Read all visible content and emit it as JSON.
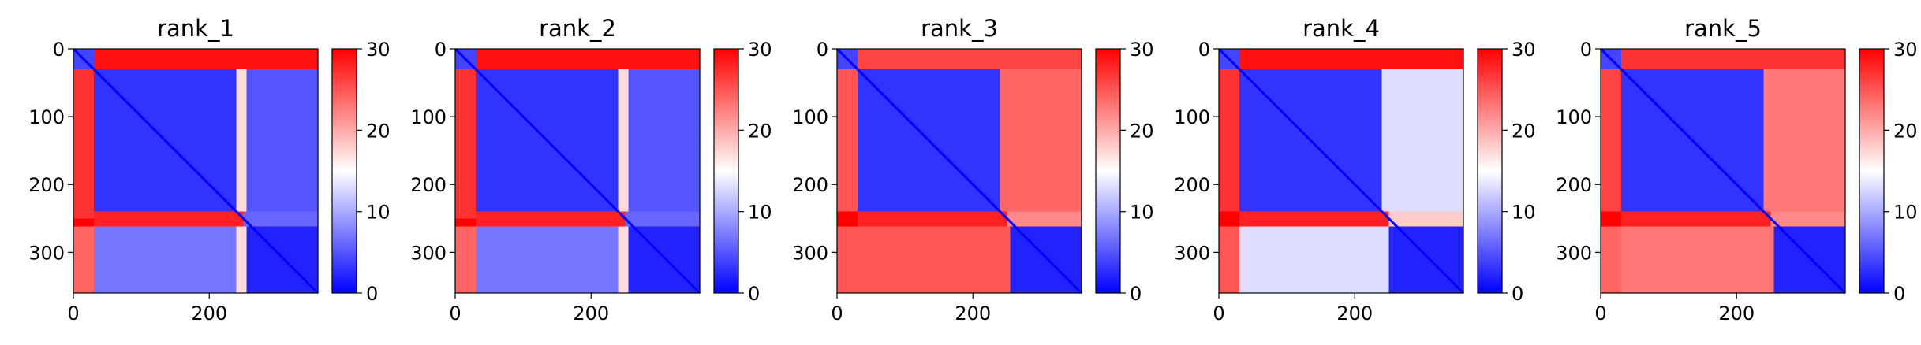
{
  "figure": {
    "colorbar": {
      "ticks": [
        "0",
        "10",
        "20",
        "30"
      ],
      "min": 0,
      "max": 30,
      "colors": {
        "low": "#0000ff",
        "mid": "#ffffff",
        "high": "#ff0000"
      }
    }
  },
  "chart_data": [
    {
      "type": "heatmap",
      "title": "rank_1",
      "xticks": [
        "0",
        "200"
      ],
      "yticks": [
        "0",
        "100",
        "200",
        "300"
      ],
      "xlim": [
        0,
        360
      ],
      "ylim": [
        0,
        360
      ],
      "color_range": [
        0,
        30
      ],
      "blocks": [
        {
          "rows": [
            0,
            30
          ],
          "cols": [
            0,
            30
          ],
          "value": 4
        },
        {
          "rows": [
            0,
            30
          ],
          "cols": [
            30,
            360
          ],
          "value": 29
        },
        {
          "rows": [
            30,
            250
          ],
          "cols": [
            0,
            30
          ],
          "value": 27
        },
        {
          "rows": [
            250,
            262
          ],
          "cols": [
            0,
            30
          ],
          "value": 30
        },
        {
          "rows": [
            262,
            360
          ],
          "cols": [
            0,
            30
          ],
          "value": 24
        },
        {
          "rows": [
            30,
            240
          ],
          "cols": [
            30,
            240
          ],
          "value": 3
        },
        {
          "rows": [
            30,
            240
          ],
          "cols": [
            240,
            255
          ],
          "value": 17
        },
        {
          "rows": [
            30,
            240
          ],
          "cols": [
            255,
            360
          ],
          "value": 5
        },
        {
          "rows": [
            240,
            262
          ],
          "cols": [
            30,
            250
          ],
          "value": 28
        },
        {
          "rows": [
            240,
            262
          ],
          "cols": [
            250,
            360
          ],
          "value": 6
        },
        {
          "rows": [
            262,
            360
          ],
          "cols": [
            30,
            240
          ],
          "value": 7
        },
        {
          "rows": [
            262,
            360
          ],
          "cols": [
            240,
            255
          ],
          "value": 17
        },
        {
          "rows": [
            262,
            360
          ],
          "cols": [
            255,
            360
          ],
          "value": 2
        }
      ]
    },
    {
      "type": "heatmap",
      "title": "rank_2",
      "xticks": [
        "0",
        "200"
      ],
      "yticks": [
        "0",
        "100",
        "200",
        "300"
      ],
      "xlim": [
        0,
        360
      ],
      "ylim": [
        0,
        360
      ],
      "color_range": [
        0,
        30
      ],
      "blocks": [
        {
          "rows": [
            0,
            30
          ],
          "cols": [
            0,
            30
          ],
          "value": 4
        },
        {
          "rows": [
            0,
            30
          ],
          "cols": [
            30,
            360
          ],
          "value": 29
        },
        {
          "rows": [
            30,
            250
          ],
          "cols": [
            0,
            30
          ],
          "value": 27
        },
        {
          "rows": [
            250,
            262
          ],
          "cols": [
            0,
            30
          ],
          "value": 30
        },
        {
          "rows": [
            262,
            360
          ],
          "cols": [
            0,
            30
          ],
          "value": 24
        },
        {
          "rows": [
            30,
            240
          ],
          "cols": [
            30,
            240
          ],
          "value": 3
        },
        {
          "rows": [
            30,
            240
          ],
          "cols": [
            240,
            255
          ],
          "value": 17
        },
        {
          "rows": [
            30,
            240
          ],
          "cols": [
            255,
            360
          ],
          "value": 5
        },
        {
          "rows": [
            240,
            262
          ],
          "cols": [
            30,
            250
          ],
          "value": 28
        },
        {
          "rows": [
            240,
            262
          ],
          "cols": [
            250,
            360
          ],
          "value": 6
        },
        {
          "rows": [
            262,
            360
          ],
          "cols": [
            30,
            240
          ],
          "value": 7
        },
        {
          "rows": [
            262,
            360
          ],
          "cols": [
            240,
            255
          ],
          "value": 17
        },
        {
          "rows": [
            262,
            360
          ],
          "cols": [
            255,
            360
          ],
          "value": 2
        }
      ]
    },
    {
      "type": "heatmap",
      "title": "rank_3",
      "xticks": [
        "0",
        "200"
      ],
      "yticks": [
        "0",
        "100",
        "200",
        "300"
      ],
      "xlim": [
        0,
        360
      ],
      "ylim": [
        0,
        360
      ],
      "color_range": [
        0,
        30
      ],
      "blocks": [
        {
          "rows": [
            0,
            30
          ],
          "cols": [
            0,
            30
          ],
          "value": 4
        },
        {
          "rows": [
            0,
            30
          ],
          "cols": [
            30,
            250
          ],
          "value": 26
        },
        {
          "rows": [
            0,
            30
          ],
          "cols": [
            250,
            360
          ],
          "value": 26
        },
        {
          "rows": [
            30,
            240
          ],
          "cols": [
            0,
            30
          ],
          "value": 25
        },
        {
          "rows": [
            240,
            262
          ],
          "cols": [
            0,
            30
          ],
          "value": 30
        },
        {
          "rows": [
            262,
            360
          ],
          "cols": [
            0,
            30
          ],
          "value": 25
        },
        {
          "rows": [
            30,
            240
          ],
          "cols": [
            30,
            240
          ],
          "value": 3
        },
        {
          "rows": [
            30,
            240
          ],
          "cols": [
            240,
            360
          ],
          "value": 24
        },
        {
          "rows": [
            240,
            262
          ],
          "cols": [
            30,
            250
          ],
          "value": 28
        },
        {
          "rows": [
            240,
            262
          ],
          "cols": [
            250,
            360
          ],
          "value": 22
        },
        {
          "rows": [
            262,
            360
          ],
          "cols": [
            30,
            255
          ],
          "value": 25
        },
        {
          "rows": [
            262,
            360
          ],
          "cols": [
            255,
            360
          ],
          "value": 2
        }
      ]
    },
    {
      "type": "heatmap",
      "title": "rank_4",
      "xticks": [
        "0",
        "200"
      ],
      "yticks": [
        "0",
        "100",
        "200",
        "300"
      ],
      "xlim": [
        0,
        360
      ],
      "ylim": [
        0,
        360
      ],
      "color_range": [
        0,
        30
      ],
      "blocks": [
        {
          "rows": [
            0,
            30
          ],
          "cols": [
            0,
            30
          ],
          "value": 4
        },
        {
          "rows": [
            0,
            30
          ],
          "cols": [
            30,
            360
          ],
          "value": 29
        },
        {
          "rows": [
            30,
            240
          ],
          "cols": [
            0,
            30
          ],
          "value": 27
        },
        {
          "rows": [
            240,
            262
          ],
          "cols": [
            0,
            30
          ],
          "value": 30
        },
        {
          "rows": [
            262,
            360
          ],
          "cols": [
            0,
            30
          ],
          "value": 25
        },
        {
          "rows": [
            30,
            240
          ],
          "cols": [
            30,
            240
          ],
          "value": 3
        },
        {
          "rows": [
            30,
            240
          ],
          "cols": [
            240,
            360
          ],
          "value": 13
        },
        {
          "rows": [
            240,
            262
          ],
          "cols": [
            30,
            250
          ],
          "value": 28
        },
        {
          "rows": [
            240,
            262
          ],
          "cols": [
            250,
            360
          ],
          "value": 18
        },
        {
          "rows": [
            262,
            360
          ],
          "cols": [
            30,
            250
          ],
          "value": 13
        },
        {
          "rows": [
            262,
            360
          ],
          "cols": [
            250,
            360
          ],
          "value": 2
        }
      ]
    },
    {
      "type": "heatmap",
      "title": "rank_5",
      "xticks": [
        "0",
        "200"
      ],
      "yticks": [
        "0",
        "100",
        "200",
        "300"
      ],
      "xlim": [
        0,
        360
      ],
      "ylim": [
        0,
        360
      ],
      "color_range": [
        0,
        30
      ],
      "blocks": [
        {
          "rows": [
            0,
            30
          ],
          "cols": [
            0,
            30
          ],
          "value": 4
        },
        {
          "rows": [
            0,
            30
          ],
          "cols": [
            30,
            360
          ],
          "value": 27
        },
        {
          "rows": [
            30,
            240
          ],
          "cols": [
            0,
            30
          ],
          "value": 26
        },
        {
          "rows": [
            240,
            262
          ],
          "cols": [
            0,
            30
          ],
          "value": 30
        },
        {
          "rows": [
            262,
            360
          ],
          "cols": [
            0,
            30
          ],
          "value": 24
        },
        {
          "rows": [
            30,
            240
          ],
          "cols": [
            30,
            240
          ],
          "value": 3
        },
        {
          "rows": [
            30,
            240
          ],
          "cols": [
            240,
            360
          ],
          "value": 23
        },
        {
          "rows": [
            240,
            262
          ],
          "cols": [
            30,
            250
          ],
          "value": 28
        },
        {
          "rows": [
            240,
            262
          ],
          "cols": [
            250,
            360
          ],
          "value": 22
        },
        {
          "rows": [
            262,
            360
          ],
          "cols": [
            30,
            255
          ],
          "value": 23
        },
        {
          "rows": [
            262,
            360
          ],
          "cols": [
            255,
            360
          ],
          "value": 2
        }
      ]
    }
  ]
}
